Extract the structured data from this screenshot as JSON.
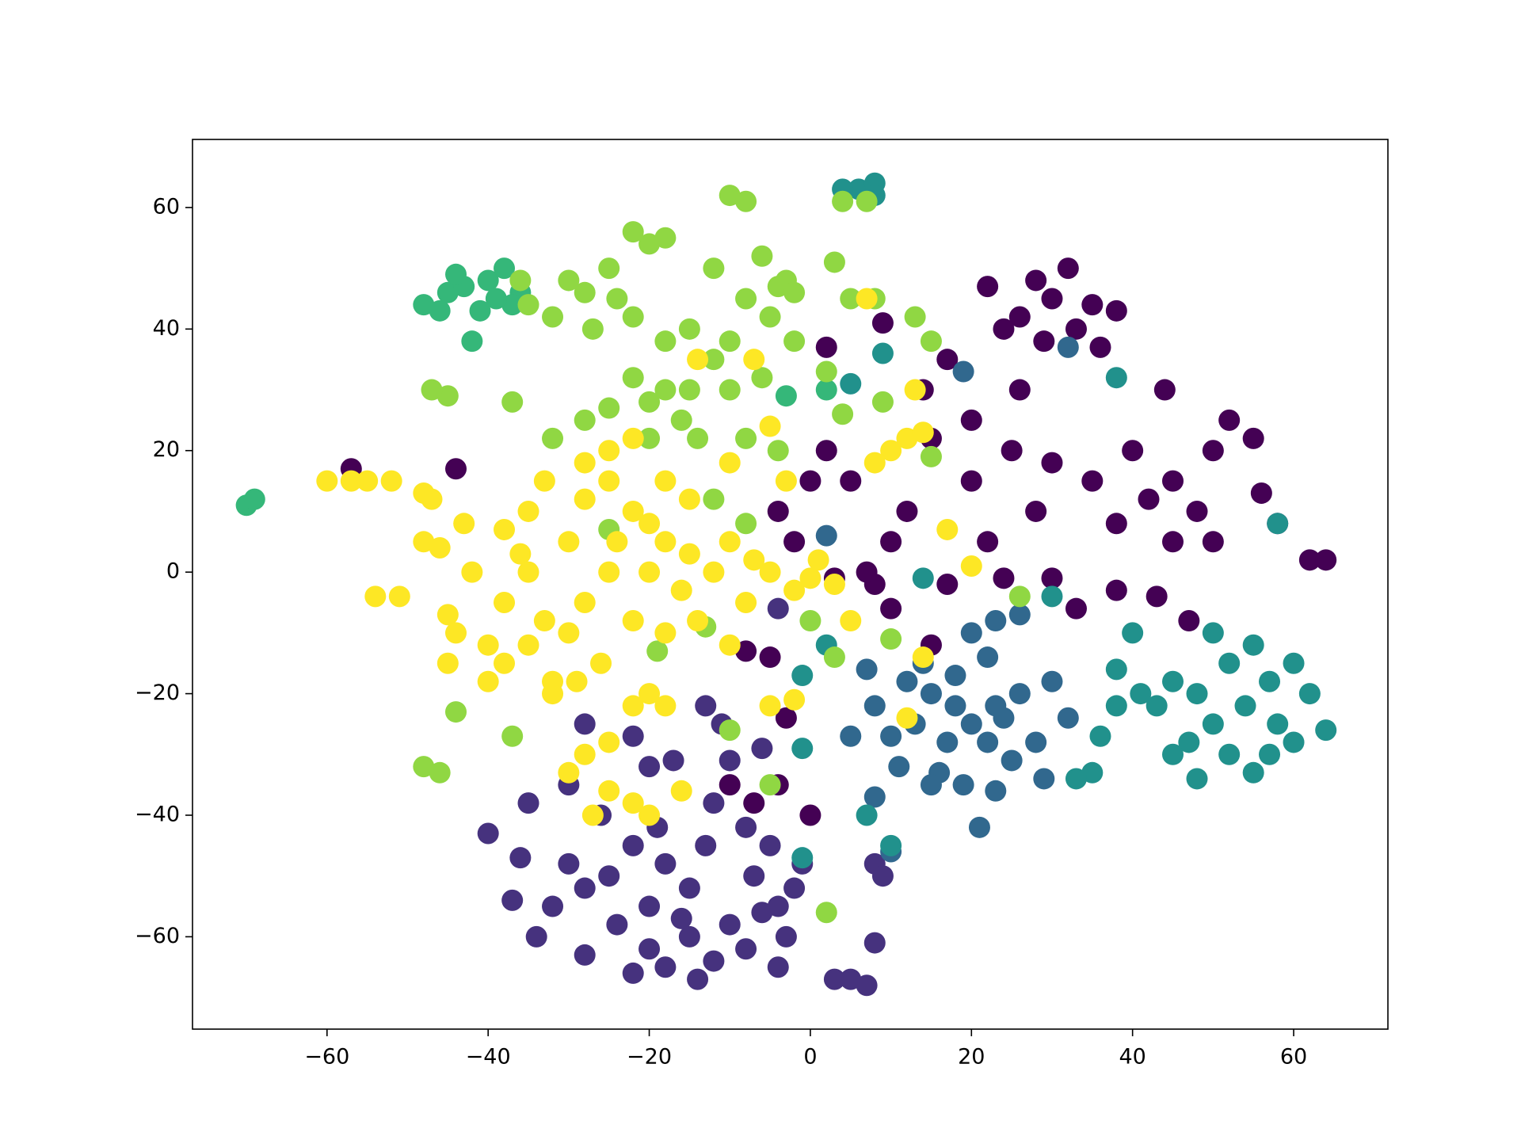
{
  "chart_data": {
    "type": "scatter",
    "xlim": [
      -76.7,
      71.7
    ],
    "ylim": [
      -75.2,
      71.2
    ],
    "xticks": [
      {
        "value": -60,
        "label": "−60"
      },
      {
        "value": -40,
        "label": "−40"
      },
      {
        "value": -20,
        "label": "−20"
      },
      0,
      20,
      40,
      60
    ],
    "yticks": [
      {
        "value": -60,
        "label": "−60"
      },
      {
        "value": -40,
        "label": "−40"
      },
      {
        "value": -20,
        "label": "−20"
      },
      0,
      20,
      40,
      60
    ],
    "grid": false,
    "series": [
      {
        "color": "#440154",
        "x": [
          28,
          32,
          30,
          35,
          26,
          33,
          29,
          24,
          22,
          38,
          36,
          20,
          25,
          30,
          28,
          35,
          40,
          38,
          42,
          45,
          48,
          50,
          52,
          55,
          45,
          50,
          56,
          58,
          62,
          64,
          20,
          15,
          12,
          10,
          8,
          5,
          2,
          0,
          -2,
          -4,
          7,
          3,
          10,
          15,
          17,
          22,
          30,
          38,
          43,
          47,
          33,
          14,
          17,
          9,
          2,
          -5,
          -8,
          -3,
          -4,
          0,
          -7,
          -10,
          -57,
          -44,
          26,
          44,
          24
        ],
        "y": [
          48,
          50,
          45,
          44,
          42,
          40,
          38,
          40,
          47,
          43,
          37,
          15,
          20,
          18,
          10,
          15,
          20,
          8,
          12,
          15,
          10,
          20,
          25,
          22,
          5,
          5,
          13,
          8,
          2,
          2,
          25,
          22,
          10,
          5,
          -2,
          15,
          20,
          15,
          5,
          10,
          0,
          -1,
          -6,
          -12,
          -2,
          5,
          -1,
          -3,
          -4,
          -8,
          -6,
          30,
          35,
          41,
          37,
          -14,
          -13,
          -24,
          -35,
          -40,
          -38,
          -35,
          17,
          17,
          30,
          30,
          -1
        ]
      },
      {
        "color": "#46327e",
        "x": [
          -25,
          -22,
          -20,
          -18,
          -15,
          -28,
          -30,
          -24,
          -20,
          -15,
          -12,
          -10,
          -8,
          -6,
          -4,
          -14,
          -18,
          -22,
          -28,
          -34,
          -37,
          -36,
          -40,
          -35,
          -30,
          -28,
          -22,
          -20,
          -17,
          -13,
          -11,
          -10,
          -12,
          -8,
          -6,
          -5,
          -4,
          -2,
          -4,
          8,
          9,
          8,
          5,
          7,
          3,
          -1,
          -32,
          -26,
          -19,
          -13,
          -7,
          -3,
          -16
        ],
        "y": [
          -50,
          -45,
          -55,
          -48,
          -52,
          -52,
          -48,
          -58,
          -62,
          -60,
          -64,
          -58,
          -62,
          -56,
          -55,
          -67,
          -65,
          -66,
          -63,
          -60,
          -54,
          -47,
          -43,
          -38,
          -35,
          -25,
          -27,
          -32,
          -31,
          -22,
          -25,
          -31,
          -38,
          -42,
          -29,
          -45,
          -65,
          -52,
          -6,
          -48,
          -50,
          -61,
          -67,
          -68,
          -67,
          -48,
          -55,
          -40,
          -42,
          -45,
          -50,
          -60,
          -57
        ]
      },
      {
        "color": "#31688e",
        "x": [
          15,
          18,
          20,
          22,
          17,
          13,
          24,
          26,
          28,
          16,
          19,
          23,
          22,
          20,
          12,
          10,
          8,
          7,
          25,
          30,
          32,
          29,
          21,
          15,
          11,
          14,
          18,
          23,
          2,
          26,
          23,
          32,
          19,
          8,
          5,
          10
        ],
        "y": [
          -20,
          -22,
          -25,
          -28,
          -28,
          -25,
          -24,
          -20,
          -28,
          -33,
          -35,
          -36,
          -14,
          -10,
          -18,
          -27,
          -22,
          -16,
          -31,
          -18,
          -24,
          -34,
          -42,
          -35,
          -32,
          -15,
          -17,
          -22,
          6,
          -7,
          -8,
          37,
          33,
          -37,
          -27,
          -46
        ]
      },
      {
        "color": "#21918c",
        "x": [
          48,
          50,
          47,
          52,
          55,
          57,
          54,
          58,
          60,
          62,
          64,
          50,
          52,
          55,
          45,
          48,
          43,
          41,
          38,
          36,
          40,
          38,
          35,
          33,
          60,
          57,
          45,
          6,
          8,
          4,
          8,
          38,
          -1,
          2,
          14,
          -1,
          7,
          58,
          30,
          5,
          9,
          -1,
          10
        ],
        "y": [
          -20,
          -25,
          -28,
          -15,
          -12,
          -18,
          -22,
          -25,
          -15,
          -20,
          -26,
          -10,
          -30,
          -33,
          -30,
          -34,
          -22,
          -20,
          -22,
          -27,
          -10,
          -16,
          -33,
          -34,
          -28,
          -30,
          -18,
          63,
          64,
          63,
          62,
          32,
          -17,
          -12,
          -1,
          -29,
          -40,
          8,
          -4,
          31,
          36,
          -47,
          -45
        ]
      },
      {
        "color": "#35b779",
        "x": [
          -48,
          -45,
          -43,
          -40,
          -38,
          -36,
          -41,
          -46,
          -44,
          -37,
          -39,
          -42,
          -70,
          -69,
          -3,
          2
        ],
        "y": [
          44,
          46,
          47,
          48,
          50,
          46,
          43,
          43,
          49,
          44,
          45,
          38,
          11,
          12,
          29,
          30
        ]
      },
      {
        "color": "#90d743",
        "x": [
          -10,
          -8,
          4,
          7,
          -22,
          -20,
          -18,
          -25,
          -28,
          -24,
          -30,
          -32,
          -35,
          -36,
          -27,
          -22,
          -18,
          -15,
          -12,
          -8,
          -5,
          -3,
          -6,
          -4,
          -2,
          3,
          -10,
          -12,
          -15,
          -18,
          -20,
          -22,
          -25,
          -28,
          -32,
          -37,
          -45,
          -47,
          -10,
          -8,
          -6,
          -2,
          -14,
          -16,
          -20,
          -12,
          -8,
          -4,
          5,
          8,
          13,
          15,
          9,
          4,
          2,
          -25,
          -13,
          -10,
          0,
          -19,
          -48,
          -46,
          -44,
          -37,
          2,
          10,
          26,
          -5,
          3,
          15
        ],
        "y": [
          62,
          61,
          61,
          61,
          56,
          54,
          55,
          50,
          46,
          45,
          48,
          42,
          44,
          48,
          40,
          42,
          38,
          40,
          50,
          45,
          42,
          48,
          52,
          47,
          46,
          51,
          38,
          35,
          30,
          30,
          28,
          32,
          27,
          25,
          22,
          28,
          29,
          30,
          30,
          22,
          32,
          38,
          22,
          25,
          22,
          12,
          8,
          20,
          45,
          45,
          42,
          38,
          28,
          26,
          33,
          7,
          -9,
          -26,
          -8,
          -13,
          -32,
          -33,
          -23,
          -27,
          -56,
          -11,
          -4,
          -35,
          -14,
          19
        ]
      },
      {
        "color": "#fde725",
        "x": [
          -57,
          -55,
          -60,
          -52,
          -54,
          -51,
          -48,
          -46,
          -48,
          -45,
          -44,
          -40,
          -42,
          -38,
          -35,
          -33,
          -36,
          -30,
          -28,
          -25,
          -22,
          -20,
          -18,
          -15,
          -12,
          -10,
          -25,
          -28,
          -30,
          -33,
          -35,
          -38,
          -40,
          -45,
          -26,
          -22,
          -18,
          -14,
          -10,
          -8,
          -20,
          -22,
          -18,
          -25,
          -28,
          -30,
          -22,
          -25,
          -27,
          -20,
          -16,
          -25,
          -22,
          -28,
          -18,
          -15,
          -24,
          -20,
          -16,
          -32,
          -35,
          -38,
          -43,
          -47,
          -32,
          -29,
          -10,
          -7,
          -5,
          0,
          -2,
          1,
          3,
          5,
          8,
          10,
          12,
          14,
          13,
          7,
          -5,
          -7,
          -14,
          -2,
          -3,
          17,
          20,
          14,
          12,
          -5
        ],
        "y": [
          15,
          15,
          15,
          15,
          -4,
          -4,
          5,
          4,
          13,
          -7,
          -10,
          -12,
          0,
          7,
          10,
          15,
          3,
          5,
          12,
          15,
          10,
          8,
          5,
          3,
          0,
          5,
          0,
          -5,
          -10,
          -8,
          -12,
          -15,
          -18,
          -15,
          -15,
          -8,
          -10,
          -8,
          -12,
          -5,
          -20,
          -22,
          -22,
          -28,
          -30,
          -33,
          -38,
          -36,
          -40,
          -40,
          -36,
          20,
          22,
          18,
          15,
          12,
          5,
          0,
          -3,
          -20,
          0,
          -5,
          8,
          12,
          -18,
          -18,
          18,
          2,
          0,
          -1,
          -3,
          2,
          -2,
          -8,
          18,
          20,
          22,
          23,
          30,
          45,
          24,
          35,
          35,
          -21,
          15,
          7,
          1,
          -14,
          -24,
          -22
        ]
      }
    ]
  }
}
